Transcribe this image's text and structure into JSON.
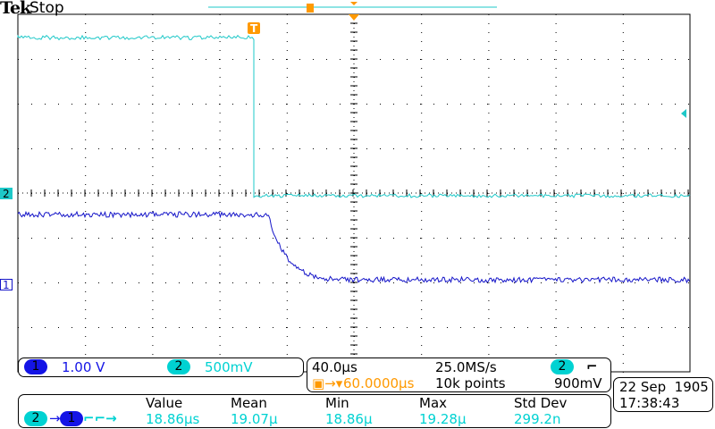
{
  "header": {
    "brand": "Tek",
    "status": "Stop"
  },
  "colors": {
    "ch1": "#1414c8",
    "ch2": "#1ec8c8",
    "trigger": "#ff9900"
  },
  "markers": {
    "ch1": "1",
    "ch2": "2",
    "trigger": "T"
  },
  "channels": [
    {
      "id": "1",
      "scale": "1.00 V"
    },
    {
      "id": "2",
      "scale": "500mV"
    }
  ],
  "timebase": {
    "scale": "40.0µs",
    "sample_rate": "25.0MS/s",
    "trigger_delay": "60.0000µs",
    "record_length": "10k points",
    "trigger_source": "2",
    "trigger_slope": "falling-edge-icon",
    "trigger_level": "900mV"
  },
  "measurement": {
    "source": "2",
    "target": "1",
    "type": "delay-falling-falling",
    "headers": [
      "Value",
      "Mean",
      "Min",
      "Max",
      "Std Dev"
    ],
    "values": [
      "18.86µs",
      "19.07µ",
      "18.86µ",
      "19.28µ",
      "299.2n"
    ]
  },
  "datetime": {
    "date": "22 Sep  1905",
    "time": "17:38:43"
  }
}
